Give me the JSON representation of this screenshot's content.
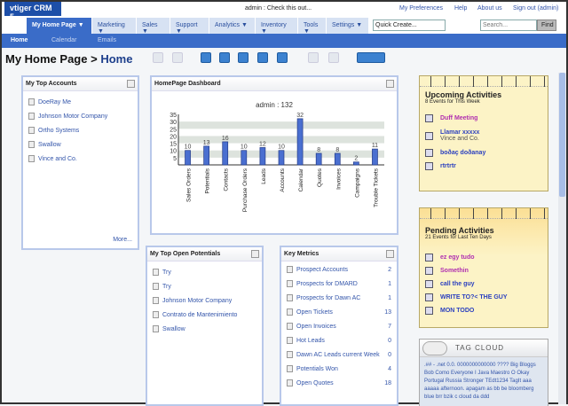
{
  "app": {
    "logo": "vtiger CRM 5",
    "message": "admin : Check this out...",
    "top_links": [
      "My Preferences",
      "Help",
      "About us",
      "Sign out (admin)"
    ]
  },
  "nav": {
    "tabs": [
      "My Home Page ▼",
      "Marketing ▼",
      "Sales ▼",
      "Support ▼",
      "Analytics ▼",
      "Inventory ▼",
      "Tools ▼",
      "Settings ▼"
    ],
    "quick_create": "Quick Create...",
    "search_placeholder": "Search...",
    "find": "Find"
  },
  "subnav": [
    "Home",
    "Calendar",
    "Emails"
  ],
  "page_title": {
    "crumb": "My Home Page >",
    "current": "Home"
  },
  "top_accounts": {
    "title": "My Top Accounts",
    "items": [
      "DoeRay Me",
      "Johnson Motor Company",
      "Ortho Systems",
      "Swallow",
      "Vince and Co."
    ],
    "more": "More..."
  },
  "dashboard": {
    "title": "HomePage Dashboard"
  },
  "chart_data": {
    "type": "bar",
    "title": "admin : 132",
    "categories": [
      "Sales Orders",
      "Potentials",
      "Contacts",
      "Purchase Orders",
      "Leads",
      "Accounts",
      "Calendar",
      "Quotes",
      "Invoices",
      "Campaigns",
      "Trouble Tickets"
    ],
    "values": [
      10,
      13,
      16,
      10,
      12,
      10,
      32,
      8,
      8,
      2,
      11
    ],
    "ylim": [
      0,
      35
    ],
    "yticks": [
      5,
      10,
      15,
      20,
      25,
      30,
      35
    ],
    "bar_color": "#4a6fd0"
  },
  "potentials": {
    "title": "My Top Open Potentials",
    "items": [
      "Try",
      "Try",
      "Johnson Motor Company",
      "Contrato de Mantenimiento",
      "Swallow"
    ]
  },
  "metrics": {
    "title": "Key Metrics",
    "items": [
      {
        "label": "Prospect Accounts",
        "value": "2"
      },
      {
        "label": "Prospects for DMARD",
        "value": "1"
      },
      {
        "label": "Prospects for Dawn AC",
        "value": "1"
      },
      {
        "label": "Open Tickets",
        "value": "13"
      },
      {
        "label": "Open Invoices",
        "value": "7"
      },
      {
        "label": "Hot Leads",
        "value": "0"
      },
      {
        "label": "Dawn AC Leads current Week",
        "value": "0"
      },
      {
        "label": "Potentials Won",
        "value": "4"
      },
      {
        "label": "Open Quotes",
        "value": "18"
      }
    ]
  },
  "upcoming": {
    "title": "Upcoming Activities",
    "subtitle": "8 Events for This Week",
    "items": [
      {
        "label": "Duff Meeting",
        "sub": "",
        "color": "#b030b0"
      },
      {
        "label": "Llamar xxxxx",
        "sub": "Vince and Co.",
        "color": "#2a3fbf"
      },
      {
        "label": "boðaç doðanay",
        "sub": "",
        "color": "#2a3fbf"
      },
      {
        "label": "rtrtrtr",
        "sub": "",
        "color": "#2a3fbf"
      }
    ]
  },
  "pending": {
    "title": "Pending Activities",
    "subtitle": "21 Events for Last Ten Days",
    "items": [
      {
        "label": "ez egy tudo",
        "color": "#b030b0"
      },
      {
        "label": "Somethin",
        "color": "#b030b0"
      },
      {
        "label": "call the guy",
        "color": "#2a3fbf"
      },
      {
        "label": "WRITE TO?< THE GUY",
        "color": "#2a3fbf"
      },
      {
        "label": "MON TODO",
        "color": "#2a3fbf"
      }
    ]
  },
  "tag_cloud": {
    "title": "TAG CLOUD",
    "text": ".## - .net 0.0. 0000000000000 ???? Big Bloggs Bob Como Everyone I Java Maestro O Okay Portugal Russia Stronger TEdt1234 TagIt aaa aaaaa afternoon. apagam as bb be bloomberg blue brr bzik c cloud da ddd"
  }
}
